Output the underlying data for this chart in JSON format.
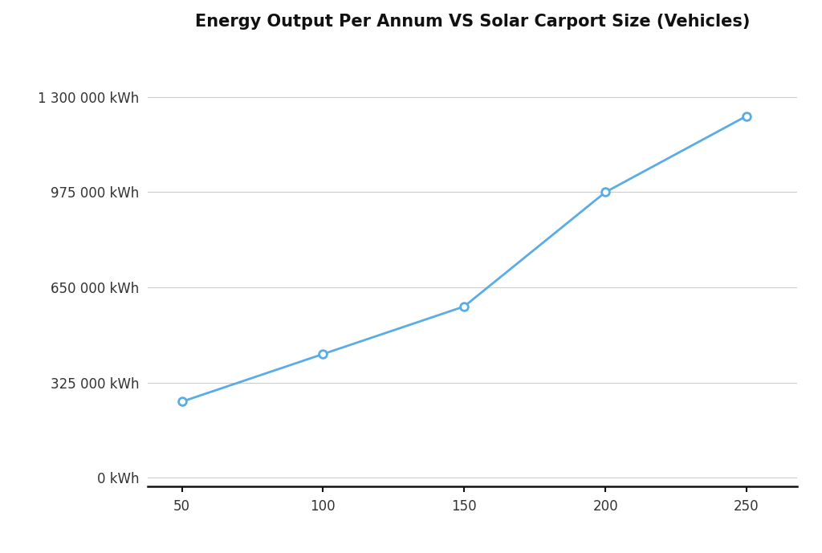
{
  "title": "Energy Output Per Annum VS Solar Carport Size (Vehicles)",
  "x_values": [
    50,
    100,
    150,
    200,
    250
  ],
  "y_values": [
    260000,
    422500,
    585000,
    975000,
    1235000
  ],
  "yticks": [
    0,
    325000,
    650000,
    975000,
    1300000
  ],
  "ytick_labels": [
    "0 kWh",
    "325 000 kWh",
    "650 000 kWh",
    "975 000 kWh",
    "1 300 000 kWh"
  ],
  "xticks": [
    50,
    100,
    150,
    200,
    250
  ],
  "line_color": "#5aace4",
  "marker_face_color": "#ffffff",
  "grid_color": "#cccccc",
  "background_color": "#ffffff",
  "title_fontsize": 15,
  "tick_fontsize": 12,
  "ylim": [
    -30000,
    1480000
  ],
  "xlim": [
    38,
    268
  ]
}
